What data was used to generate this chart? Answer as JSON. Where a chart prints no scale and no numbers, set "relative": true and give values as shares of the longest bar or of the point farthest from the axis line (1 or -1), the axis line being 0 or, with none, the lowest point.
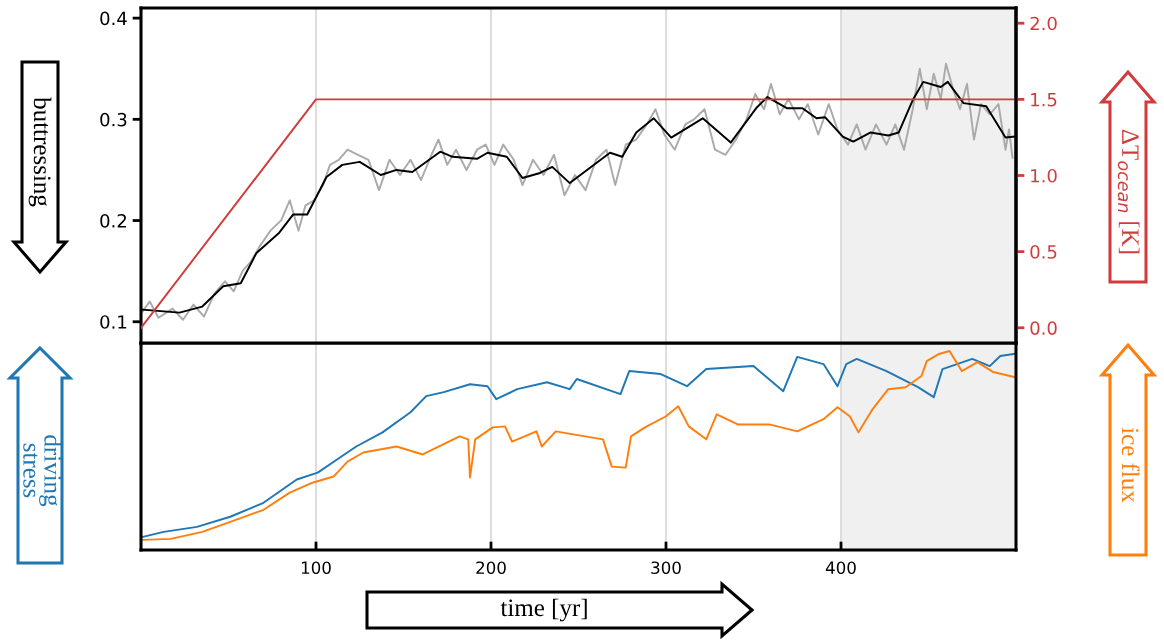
{
  "chart_data": [
    {
      "type": "line",
      "ylabel": "buttressing",
      "y2label": "ΔT$_{ocean}$ [K]",
      "xlim": [
        0,
        500
      ],
      "xticks": [
        100,
        200,
        300,
        400
      ],
      "ylim": [
        0.079,
        0.41
      ],
      "yticks": [
        0.1,
        0.2,
        0.3,
        0.4
      ],
      "y2lim": [
        -0.1,
        2.1
      ],
      "y2ticks": [
        {
          "value": 0,
          "label": "0.0"
        },
        {
          "value": 0.5,
          "label": "0.5"
        },
        {
          "value": 1,
          "label": "1.0"
        },
        {
          "value": 1.5,
          "label": "1.5"
        },
        {
          "value": 2,
          "label": "2.0"
        }
      ],
      "grid": "x",
      "tick_labels": "y",
      "bands": [
        {
          "axis": "x",
          "from": 400,
          "to": 500,
          "color": "#f0f0f0"
        }
      ],
      "series": [
        {
          "color": "#aaaaaa",
          "x": [
            0,
            5,
            10,
            18,
            24,
            30,
            36,
            42,
            48,
            53,
            58,
            63,
            68,
            74,
            80,
            85,
            90,
            94,
            99,
            104,
            108,
            113,
            118,
            124,
            130,
            136,
            142,
            148,
            154,
            160,
            166,
            170,
            175,
            180,
            186,
            192,
            197,
            202,
            207,
            213,
            218,
            224,
            230,
            236,
            242,
            248,
            254,
            260,
            266,
            271,
            277,
            283,
            289,
            294,
            299,
            305,
            311,
            316,
            322,
            328,
            334,
            340,
            346,
            351,
            356,
            360,
            365,
            370,
            376,
            381,
            387,
            393,
            398,
            404,
            409,
            414,
            420,
            426,
            431,
            436,
            441,
            445,
            449,
            453,
            457,
            460,
            464,
            468,
            472,
            476,
            480,
            485,
            490,
            494,
            496,
            498
          ],
          "values": [
            0.108,
            0.12,
            0.104,
            0.113,
            0.102,
            0.117,
            0.105,
            0.128,
            0.14,
            0.13,
            0.15,
            0.16,
            0.175,
            0.19,
            0.2,
            0.22,
            0.19,
            0.215,
            0.22,
            0.235,
            0.255,
            0.26,
            0.27,
            0.265,
            0.26,
            0.23,
            0.26,
            0.245,
            0.26,
            0.24,
            0.265,
            0.28,
            0.255,
            0.27,
            0.25,
            0.27,
            0.275,
            0.255,
            0.275,
            0.26,
            0.235,
            0.26,
            0.245,
            0.265,
            0.225,
            0.245,
            0.23,
            0.26,
            0.27,
            0.235,
            0.275,
            0.28,
            0.295,
            0.31,
            0.285,
            0.27,
            0.295,
            0.3,
            0.31,
            0.27,
            0.265,
            0.28,
            0.3,
            0.325,
            0.31,
            0.335,
            0.305,
            0.32,
            0.3,
            0.315,
            0.285,
            0.315,
            0.29,
            0.275,
            0.295,
            0.27,
            0.295,
            0.275,
            0.295,
            0.27,
            0.31,
            0.35,
            0.31,
            0.345,
            0.32,
            0.355,
            0.33,
            0.31,
            0.335,
            0.28,
            0.315,
            0.305,
            0.315,
            0.27,
            0.29,
            0.262
          ]
        },
        {
          "color": "#000000",
          "x": [
            1,
            22,
            35,
            47,
            57,
            66,
            79,
            87,
            95,
            106,
            115,
            125,
            137,
            146,
            155,
            171,
            178,
            192,
            198,
            209,
            218,
            228,
            235,
            245,
            268,
            275,
            283,
            293,
            303,
            321,
            337,
            352,
            358,
            369,
            378,
            386,
            391,
            401,
            407,
            417,
            427,
            433,
            441,
            447,
            457,
            461,
            470,
            483,
            494,
            499
          ],
          "values": [
            0.112,
            0.109,
            0.115,
            0.135,
            0.138,
            0.168,
            0.188,
            0.206,
            0.206,
            0.243,
            0.255,
            0.258,
            0.245,
            0.25,
            0.248,
            0.268,
            0.263,
            0.261,
            0.267,
            0.263,
            0.242,
            0.247,
            0.253,
            0.237,
            0.267,
            0.263,
            0.287,
            0.301,
            0.282,
            0.301,
            0.277,
            0.312,
            0.322,
            0.311,
            0.311,
            0.301,
            0.302,
            0.283,
            0.278,
            0.287,
            0.284,
            0.287,
            0.319,
            0.337,
            0.332,
            0.337,
            0.316,
            0.313,
            0.282,
            0.283
          ]
        },
        {
          "color": "#d03c3c",
          "axis": "y2",
          "x": [
            0,
            100,
            500
          ],
          "values": [
            0.0,
            1.5,
            1.5
          ]
        }
      ]
    },
    {
      "type": "line",
      "relative": true,
      "xlabel": "time [yr]",
      "xlim": [
        0,
        500
      ],
      "xticks": [
        100,
        200,
        300,
        400
      ],
      "grid": "x",
      "tick_labels": "x",
      "bands": [
        {
          "axis": "x",
          "from": 400,
          "to": 500,
          "color": "#f0f0f0"
        }
      ],
      "series": [
        {
          "name": "driving stress",
          "color": "#1f77b4",
          "x": [
            1,
            13,
            32,
            51,
            70,
            89,
            101,
            112,
            123,
            138,
            154,
            163,
            173,
            188,
            198,
            203,
            215,
            232,
            245,
            249,
            274,
            279,
            297,
            312,
            323,
            350,
            367,
            375,
            390,
            398,
            403,
            409,
            426,
            444,
            453,
            458,
            475,
            485,
            491,
            499
          ],
          "values": [
            0.066,
            0.091,
            0.116,
            0.167,
            0.237,
            0.354,
            0.389,
            0.455,
            0.52,
            0.591,
            0.692,
            0.773,
            0.793,
            0.833,
            0.823,
            0.758,
            0.808,
            0.843,
            0.808,
            0.859,
            0.783,
            0.899,
            0.884,
            0.823,
            0.909,
            0.924,
            0.798,
            0.97,
            0.934,
            0.823,
            0.934,
            0.96,
            0.899,
            0.818,
            0.768,
            0.909,
            0.96,
            0.924,
            0.975,
            0.985
          ]
        },
        {
          "name": "ice flux",
          "color": "#ff7f0e",
          "x": [
            1,
            17,
            35,
            51,
            70,
            85,
            98,
            110,
            118,
            127,
            146,
            161,
            182,
            187,
            188,
            191,
            201,
            208,
            212,
            226,
            229,
            237,
            247,
            264,
            269,
            277,
            280,
            288,
            300,
            307,
            313,
            323,
            329,
            341,
            359,
            375,
            390,
            398,
            405,
            410,
            418,
            427,
            437,
            446,
            449,
            456,
            462,
            469,
            478,
            487,
            499
          ],
          "values": [
            0.051,
            0.056,
            0.091,
            0.141,
            0.202,
            0.288,
            0.338,
            0.369,
            0.444,
            0.49,
            0.52,
            0.48,
            0.571,
            0.556,
            0.364,
            0.556,
            0.616,
            0.621,
            0.545,
            0.596,
            0.52,
            0.596,
            0.581,
            0.556,
            0.419,
            0.414,
            0.571,
            0.616,
            0.672,
            0.722,
            0.621,
            0.556,
            0.682,
            0.631,
            0.631,
            0.596,
            0.657,
            0.717,
            0.672,
            0.591,
            0.707,
            0.808,
            0.818,
            0.874,
            0.949,
            0.985,
            1.0,
            0.899,
            0.944,
            0.894,
            0.869
          ]
        }
      ]
    }
  ]
}
